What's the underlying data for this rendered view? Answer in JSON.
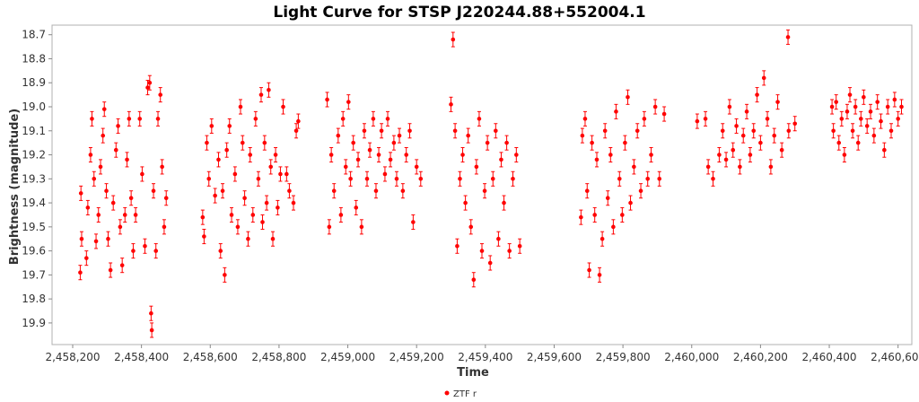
{
  "chart_data": {
    "type": "scatter",
    "title": "Light Curve for STSP J220244.88+552004.1",
    "xlabel": "Time",
    "ylabel": "Brightness (magnitude)",
    "xlim": [
      2458140,
      2460640
    ],
    "ylim": [
      19.99,
      18.66
    ],
    "y_inverted": true,
    "grid": false,
    "legend_position": "bottom-center",
    "x_ticks": [
      2458200,
      2458400,
      2458600,
      2458800,
      2459000,
      2459200,
      2459400,
      2459600,
      2459800,
      2460000,
      2460200,
      2460400,
      2460600
    ],
    "x_tick_labels": [
      "2,458,200",
      "2,458,400",
      "2,458,600",
      "2,458,800",
      "2,459,000",
      "2,459,200",
      "2,459,400",
      "2,459,600",
      "2,459,800",
      "2,460,000",
      "2,460,200",
      "2,460,400",
      "2,460,600"
    ],
    "y_ticks": [
      18.7,
      18.8,
      18.9,
      19.0,
      19.1,
      19.2,
      19.3,
      19.4,
      19.5,
      19.6,
      19.7,
      19.8,
      19.9
    ],
    "y_tick_labels": [
      "18.7",
      "18.8",
      "18.9",
      "19.0",
      "19.1",
      "19.2",
      "19.3",
      "19.4",
      "19.5",
      "19.6",
      "19.7",
      "19.8",
      "19.9"
    ],
    "series": [
      {
        "name": "ZTF r",
        "color": "#ff0000",
        "marker": "circle",
        "error_bars": true,
        "typical_error": 0.03,
        "points": [
          {
            "x": 2458222,
            "y": 19.69
          },
          {
            "x": 2458224,
            "y": 19.36
          },
          {
            "x": 2458226,
            "y": 19.55
          },
          {
            "x": 2458240,
            "y": 19.63
          },
          {
            "x": 2458244,
            "y": 19.42
          },
          {
            "x": 2458252,
            "y": 19.2
          },
          {
            "x": 2458256,
            "y": 19.05
          },
          {
            "x": 2458262,
            "y": 19.3
          },
          {
            "x": 2458268,
            "y": 19.56
          },
          {
            "x": 2458275,
            "y": 19.45
          },
          {
            "x": 2458281,
            "y": 19.25
          },
          {
            "x": 2458288,
            "y": 19.12
          },
          {
            "x": 2458292,
            "y": 19.01
          },
          {
            "x": 2458298,
            "y": 19.35
          },
          {
            "x": 2458303,
            "y": 19.55
          },
          {
            "x": 2458310,
            "y": 19.68
          },
          {
            "x": 2458318,
            "y": 19.4
          },
          {
            "x": 2458326,
            "y": 19.18
          },
          {
            "x": 2458332,
            "y": 19.08
          },
          {
            "x": 2458338,
            "y": 19.5
          },
          {
            "x": 2458344,
            "y": 19.66
          },
          {
            "x": 2458352,
            "y": 19.45
          },
          {
            "x": 2458358,
            "y": 19.22
          },
          {
            "x": 2458364,
            "y": 19.05
          },
          {
            "x": 2458370,
            "y": 19.38
          },
          {
            "x": 2458376,
            "y": 19.6
          },
          {
            "x": 2458383,
            "y": 19.45
          },
          {
            "x": 2458395,
            "y": 19.05
          },
          {
            "x": 2458402,
            "y": 19.28
          },
          {
            "x": 2458410,
            "y": 19.58
          },
          {
            "x": 2458418,
            "y": 18.92
          },
          {
            "x": 2458424,
            "y": 18.9
          },
          {
            "x": 2458428,
            "y": 19.86
          },
          {
            "x": 2458430,
            "y": 19.93
          },
          {
            "x": 2458435,
            "y": 19.35
          },
          {
            "x": 2458442,
            "y": 19.6
          },
          {
            "x": 2458448,
            "y": 19.05
          },
          {
            "x": 2458455,
            "y": 18.95
          },
          {
            "x": 2458460,
            "y": 19.25
          },
          {
            "x": 2458466,
            "y": 19.5
          },
          {
            "x": 2458472,
            "y": 19.38
          },
          {
            "x": 2458578,
            "y": 19.46
          },
          {
            "x": 2458582,
            "y": 19.54
          },
          {
            "x": 2458590,
            "y": 19.15
          },
          {
            "x": 2458596,
            "y": 19.3
          },
          {
            "x": 2458604,
            "y": 19.08
          },
          {
            "x": 2458614,
            "y": 19.37
          },
          {
            "x": 2458624,
            "y": 19.22
          },
          {
            "x": 2458630,
            "y": 19.6
          },
          {
            "x": 2458636,
            "y": 19.35
          },
          {
            "x": 2458642,
            "y": 19.7
          },
          {
            "x": 2458648,
            "y": 19.18
          },
          {
            "x": 2458656,
            "y": 19.08
          },
          {
            "x": 2458662,
            "y": 19.45
          },
          {
            "x": 2458672,
            "y": 19.28
          },
          {
            "x": 2458680,
            "y": 19.5
          },
          {
            "x": 2458688,
            "y": 19.0
          },
          {
            "x": 2458694,
            "y": 19.15
          },
          {
            "x": 2458700,
            "y": 19.38
          },
          {
            "x": 2458710,
            "y": 19.55
          },
          {
            "x": 2458716,
            "y": 19.2
          },
          {
            "x": 2458724,
            "y": 19.45
          },
          {
            "x": 2458732,
            "y": 19.05
          },
          {
            "x": 2458740,
            "y": 19.3
          },
          {
            "x": 2458748,
            "y": 18.95
          },
          {
            "x": 2458752,
            "y": 19.48
          },
          {
            "x": 2458758,
            "y": 19.15
          },
          {
            "x": 2458764,
            "y": 19.4
          },
          {
            "x": 2458770,
            "y": 18.93
          },
          {
            "x": 2458776,
            "y": 19.25
          },
          {
            "x": 2458782,
            "y": 19.55
          },
          {
            "x": 2458790,
            "y": 19.2
          },
          {
            "x": 2458796,
            "y": 19.42
          },
          {
            "x": 2458804,
            "y": 19.28
          },
          {
            "x": 2458812,
            "y": 19.0
          },
          {
            "x": 2458822,
            "y": 19.28
          },
          {
            "x": 2458830,
            "y": 19.35
          },
          {
            "x": 2458842,
            "y": 19.4
          },
          {
            "x": 2458850,
            "y": 19.1
          },
          {
            "x": 2458856,
            "y": 19.06
          },
          {
            "x": 2458940,
            "y": 18.97
          },
          {
            "x": 2458946,
            "y": 19.5
          },
          {
            "x": 2458952,
            "y": 19.2
          },
          {
            "x": 2458960,
            "y": 19.35
          },
          {
            "x": 2458972,
            "y": 19.12
          },
          {
            "x": 2458980,
            "y": 19.45
          },
          {
            "x": 2458986,
            "y": 19.05
          },
          {
            "x": 2458994,
            "y": 19.25
          },
          {
            "x": 2459002,
            "y": 18.98
          },
          {
            "x": 2459008,
            "y": 19.3
          },
          {
            "x": 2459016,
            "y": 19.15
          },
          {
            "x": 2459024,
            "y": 19.42
          },
          {
            "x": 2459030,
            "y": 19.22
          },
          {
            "x": 2459040,
            "y": 19.5
          },
          {
            "x": 2459048,
            "y": 19.1
          },
          {
            "x": 2459056,
            "y": 19.3
          },
          {
            "x": 2459064,
            "y": 19.18
          },
          {
            "x": 2459074,
            "y": 19.05
          },
          {
            "x": 2459082,
            "y": 19.35
          },
          {
            "x": 2459090,
            "y": 19.2
          },
          {
            "x": 2459098,
            "y": 19.1
          },
          {
            "x": 2459108,
            "y": 19.28
          },
          {
            "x": 2459116,
            "y": 19.05
          },
          {
            "x": 2459124,
            "y": 19.22
          },
          {
            "x": 2459134,
            "y": 19.15
          },
          {
            "x": 2459142,
            "y": 19.3
          },
          {
            "x": 2459150,
            "y": 19.12
          },
          {
            "x": 2459160,
            "y": 19.35
          },
          {
            "x": 2459170,
            "y": 19.2
          },
          {
            "x": 2459180,
            "y": 19.1
          },
          {
            "x": 2459190,
            "y": 19.48
          },
          {
            "x": 2459200,
            "y": 19.25
          },
          {
            "x": 2459212,
            "y": 19.3
          },
          {
            "x": 2459300,
            "y": 18.99
          },
          {
            "x": 2459306,
            "y": 18.72
          },
          {
            "x": 2459312,
            "y": 19.1
          },
          {
            "x": 2459318,
            "y": 19.58
          },
          {
            "x": 2459326,
            "y": 19.3
          },
          {
            "x": 2459334,
            "y": 19.2
          },
          {
            "x": 2459342,
            "y": 19.4
          },
          {
            "x": 2459350,
            "y": 19.12
          },
          {
            "x": 2459358,
            "y": 19.5
          },
          {
            "x": 2459366,
            "y": 19.72
          },
          {
            "x": 2459374,
            "y": 19.25
          },
          {
            "x": 2459382,
            "y": 19.05
          },
          {
            "x": 2459390,
            "y": 19.6
          },
          {
            "x": 2459398,
            "y": 19.35
          },
          {
            "x": 2459406,
            "y": 19.15
          },
          {
            "x": 2459414,
            "y": 19.65
          },
          {
            "x": 2459422,
            "y": 19.3
          },
          {
            "x": 2459430,
            "y": 19.1
          },
          {
            "x": 2459438,
            "y": 19.55
          },
          {
            "x": 2459446,
            "y": 19.22
          },
          {
            "x": 2459454,
            "y": 19.4
          },
          {
            "x": 2459462,
            "y": 19.15
          },
          {
            "x": 2459470,
            "y": 19.6
          },
          {
            "x": 2459480,
            "y": 19.3
          },
          {
            "x": 2459490,
            "y": 19.2
          },
          {
            "x": 2459500,
            "y": 19.58
          },
          {
            "x": 2459678,
            "y": 19.46
          },
          {
            "x": 2459682,
            "y": 19.12
          },
          {
            "x": 2459690,
            "y": 19.05
          },
          {
            "x": 2459696,
            "y": 19.35
          },
          {
            "x": 2459702,
            "y": 19.68
          },
          {
            "x": 2459710,
            "y": 19.15
          },
          {
            "x": 2459718,
            "y": 19.45
          },
          {
            "x": 2459724,
            "y": 19.22
          },
          {
            "x": 2459732,
            "y": 19.7
          },
          {
            "x": 2459740,
            "y": 19.55
          },
          {
            "x": 2459748,
            "y": 19.1
          },
          {
            "x": 2459756,
            "y": 19.38
          },
          {
            "x": 2459764,
            "y": 19.2
          },
          {
            "x": 2459772,
            "y": 19.5
          },
          {
            "x": 2459780,
            "y": 19.02
          },
          {
            "x": 2459790,
            "y": 19.3
          },
          {
            "x": 2459798,
            "y": 19.45
          },
          {
            "x": 2459806,
            "y": 19.15
          },
          {
            "x": 2459814,
            "y": 18.96
          },
          {
            "x": 2459822,
            "y": 19.4
          },
          {
            "x": 2459832,
            "y": 19.25
          },
          {
            "x": 2459842,
            "y": 19.1
          },
          {
            "x": 2459852,
            "y": 19.35
          },
          {
            "x": 2459862,
            "y": 19.05
          },
          {
            "x": 2459872,
            "y": 19.3
          },
          {
            "x": 2459882,
            "y": 19.2
          },
          {
            "x": 2459894,
            "y": 19.0
          },
          {
            "x": 2459906,
            "y": 19.3
          },
          {
            "x": 2459920,
            "y": 19.03
          },
          {
            "x": 2460016,
            "y": 19.06
          },
          {
            "x": 2460040,
            "y": 19.05
          },
          {
            "x": 2460048,
            "y": 19.25
          },
          {
            "x": 2460062,
            "y": 19.3
          },
          {
            "x": 2460080,
            "y": 19.2
          },
          {
            "x": 2460090,
            "y": 19.1
          },
          {
            "x": 2460100,
            "y": 19.22
          },
          {
            "x": 2460110,
            "y": 19.0
          },
          {
            "x": 2460120,
            "y": 19.18
          },
          {
            "x": 2460130,
            "y": 19.08
          },
          {
            "x": 2460140,
            "y": 19.25
          },
          {
            "x": 2460150,
            "y": 19.12
          },
          {
            "x": 2460160,
            "y": 19.02
          },
          {
            "x": 2460170,
            "y": 19.2
          },
          {
            "x": 2460180,
            "y": 19.1
          },
          {
            "x": 2460190,
            "y": 18.95
          },
          {
            "x": 2460200,
            "y": 19.15
          },
          {
            "x": 2460210,
            "y": 18.88
          },
          {
            "x": 2460220,
            "y": 19.05
          },
          {
            "x": 2460230,
            "y": 19.25
          },
          {
            "x": 2460240,
            "y": 19.12
          },
          {
            "x": 2460250,
            "y": 18.98
          },
          {
            "x": 2460262,
            "y": 19.18
          },
          {
            "x": 2460280,
            "y": 18.71
          },
          {
            "x": 2460282,
            "y": 19.1
          },
          {
            "x": 2460300,
            "y": 19.07
          },
          {
            "x": 2460408,
            "y": 19.0
          },
          {
            "x": 2460412,
            "y": 19.1
          },
          {
            "x": 2460420,
            "y": 18.98
          },
          {
            "x": 2460428,
            "y": 19.15
          },
          {
            "x": 2460436,
            "y": 19.05
          },
          {
            "x": 2460444,
            "y": 19.2
          },
          {
            "x": 2460452,
            "y": 19.02
          },
          {
            "x": 2460460,
            "y": 18.95
          },
          {
            "x": 2460468,
            "y": 19.1
          },
          {
            "x": 2460476,
            "y": 19.0
          },
          {
            "x": 2460484,
            "y": 19.15
          },
          {
            "x": 2460492,
            "y": 19.05
          },
          {
            "x": 2460500,
            "y": 18.96
          },
          {
            "x": 2460510,
            "y": 19.08
          },
          {
            "x": 2460520,
            "y": 19.02
          },
          {
            "x": 2460530,
            "y": 19.12
          },
          {
            "x": 2460540,
            "y": 18.98
          },
          {
            "x": 2460550,
            "y": 19.06
          },
          {
            "x": 2460560,
            "y": 19.18
          },
          {
            "x": 2460570,
            "y": 19.0
          },
          {
            "x": 2460580,
            "y": 19.1
          },
          {
            "x": 2460590,
            "y": 18.97
          },
          {
            "x": 2460600,
            "y": 19.05
          },
          {
            "x": 2460610,
            "y": 19.0
          }
        ]
      }
    ]
  }
}
